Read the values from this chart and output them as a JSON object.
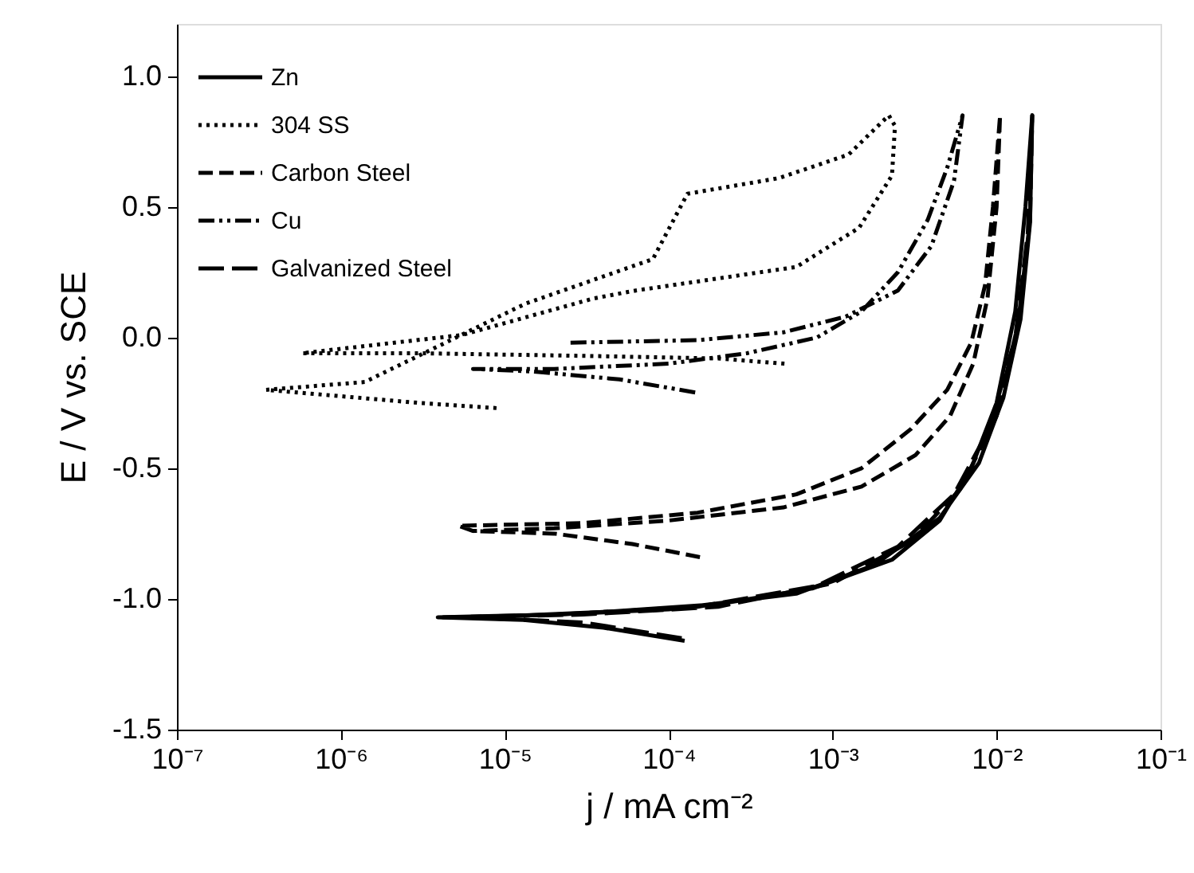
{
  "chart_data": {
    "type": "line",
    "xlabel": "j / mA cm⁻²",
    "ylabel": "E / V vs. SCE",
    "log": "x",
    "xlim": [
      1e-07,
      0.1
    ],
    "xticks": [
      {
        "value": 1e-07,
        "label": "10⁻⁷"
      },
      {
        "value": 1e-06,
        "label": "10⁻⁶"
      },
      {
        "value": 1e-05,
        "label": "10⁻⁵"
      },
      {
        "value": 0.0001,
        "label": "10⁻⁴"
      },
      {
        "value": 0.001,
        "label": "10⁻³"
      },
      {
        "value": 0.01,
        "label": "10⁻²"
      },
      {
        "value": 0.1,
        "label": "10⁻¹"
      }
    ],
    "ylim": [
      -1.5,
      1.2
    ],
    "yticks": [
      {
        "value": -1.5,
        "label": "-1.5"
      },
      {
        "value": -1.0,
        "label": "-1.0"
      },
      {
        "value": -0.5,
        "label": "-0.5"
      },
      {
        "value": 0,
        "label": "0.0"
      },
      {
        "value": 0.5,
        "label": "0.5"
      },
      {
        "value": 1.0,
        "label": "1.0"
      }
    ],
    "grid": false,
    "legend": "top left",
    "marker": "none",
    "series": [
      {
        "name": "Zn",
        "color": "#000000",
        "line_style": "solid",
        "x": [
          0.000125,
          4e-05,
          1.3e-05,
          3.9e-06,
          2e-05,
          0.0001,
          0.0006,
          0.0018,
          0.0045,
          0.0078,
          0.011,
          0.014,
          0.016,
          0.0165,
          0.015,
          0.013,
          0.01,
          0.007,
          0.0045,
          0.0023,
          0.00075,
          0.0002,
          4e-05,
          7e-06
        ],
        "values": [
          -1.16,
          -1.11,
          -1.08,
          -1.07,
          -1.06,
          -1.04,
          -0.98,
          -0.87,
          -0.69,
          -0.48,
          -0.23,
          0.07,
          0.44,
          0.85,
          0.5,
          0.1,
          -0.25,
          -0.5,
          -0.7,
          -0.85,
          -0.96,
          -1.02,
          -1.05,
          -1.07
        ]
      },
      {
        "name": "304 SS",
        "color": "#000000",
        "line_style": "dotted",
        "x": [
          8.9e-06,
          3e-06,
          3.5e-07,
          1.4e-06,
          1.34e-05,
          8e-05,
          0.00013,
          0.00047,
          0.00125,
          0.0022,
          0.0024,
          0.0023,
          0.00145,
          0.0006,
          6.3e-05,
          3.5e-05,
          5.5e-06,
          5.8e-07,
          3e-06,
          3e-05,
          0.0002,
          0.00051
        ],
        "values": [
          -0.27,
          -0.25,
          -0.2,
          -0.17,
          0.13,
          0.3,
          0.55,
          0.61,
          0.7,
          0.85,
          0.81,
          0.62,
          0.42,
          0.27,
          0.18,
          0.15,
          0.01,
          -0.06,
          -0.06,
          -0.07,
          -0.08,
          -0.1
        ]
      },
      {
        "name": "Carbon Steel",
        "color": "#000000",
        "line_style": "dashed",
        "x": [
          0.000155,
          6e-05,
          2e-05,
          6.4e-06,
          5.2e-06,
          3e-05,
          0.00015,
          0.0006,
          0.0015,
          0.003,
          0.005,
          0.007,
          0.0085,
          0.0095,
          0.0105,
          0.01,
          0.0088,
          0.0072,
          0.0052,
          0.0032,
          0.0015,
          0.0005,
          0.0001,
          2e-05,
          6.4e-06
        ],
        "values": [
          -0.84,
          -0.79,
          -0.75,
          -0.74,
          -0.72,
          -0.71,
          -0.67,
          -0.6,
          -0.5,
          -0.35,
          -0.2,
          -0.02,
          0.2,
          0.5,
          0.85,
          0.5,
          0.15,
          -0.1,
          -0.3,
          -0.45,
          -0.57,
          -0.65,
          -0.7,
          -0.73,
          -0.74
        ]
      },
      {
        "name": "Cu",
        "color": "#000000",
        "line_style": "dashdotdot",
        "x": [
          0.000145,
          5e-05,
          1.5e-05,
          6.4e-06,
          2e-05,
          0.0001,
          0.0003,
          0.0008,
          0.0015,
          0.0025,
          0.0038,
          0.005,
          0.0062,
          0.0055,
          0.004,
          0.0025,
          0.0012,
          0.0005,
          0.00015,
          2.4e-05
        ],
        "values": [
          -0.21,
          -0.16,
          -0.13,
          -0.12,
          -0.12,
          -0.1,
          -0.06,
          0.0,
          0.1,
          0.25,
          0.45,
          0.65,
          0.85,
          0.6,
          0.35,
          0.18,
          0.08,
          0.02,
          -0.01,
          -0.02
        ]
      },
      {
        "name": "Galvanized Steel",
        "color": "#000000",
        "line_style": "longdash",
        "x": [
          0.00012,
          3e-05,
          6e-06,
          4.2e-06,
          3e-05,
          0.0002,
          0.001,
          0.003,
          0.006,
          0.01,
          0.0135,
          0.016,
          0.0165,
          0.0155,
          0.013,
          0.009,
          0.0055,
          0.0025,
          0.0008,
          0.00015,
          2e-05,
          5e-06
        ],
        "values": [
          -1.15,
          -1.09,
          -1.07,
          -1.07,
          -1.06,
          -1.03,
          -0.94,
          -0.78,
          -0.58,
          -0.3,
          0.05,
          0.45,
          0.85,
          0.4,
          0.0,
          -0.35,
          -0.6,
          -0.8,
          -0.95,
          -1.03,
          -1.06,
          -1.07
        ]
      }
    ]
  }
}
